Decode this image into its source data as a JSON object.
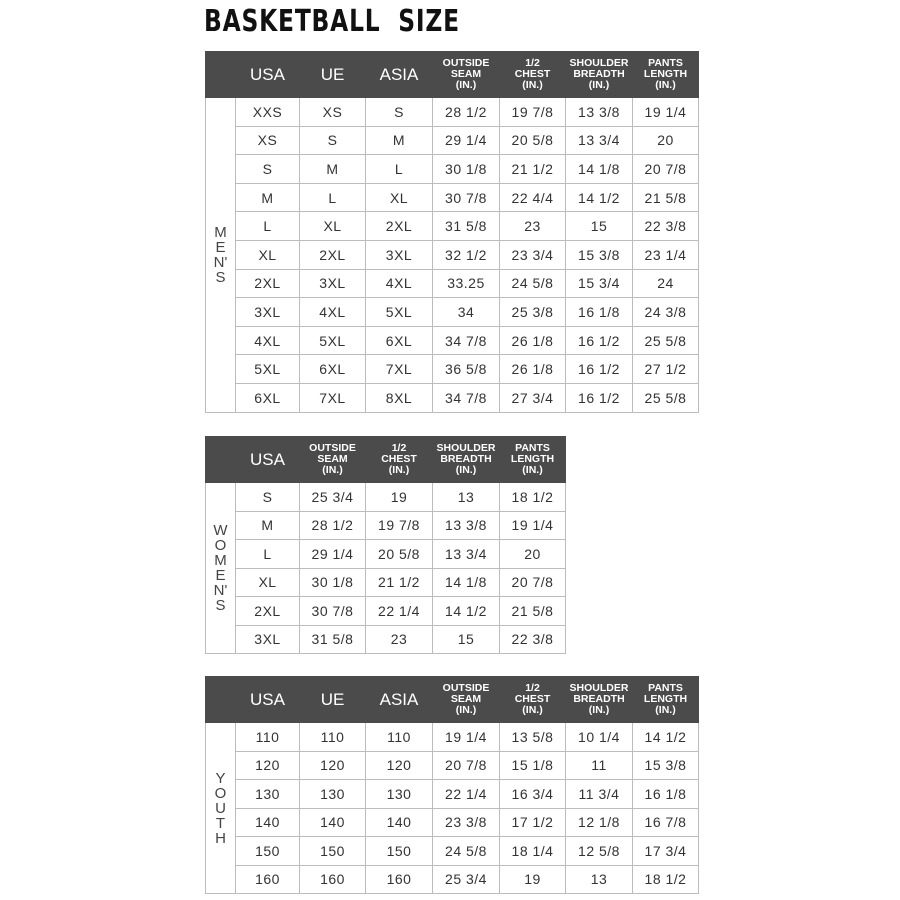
{
  "title": "BASKETBALL  SIZE",
  "colors": {
    "header_bg": "#4b4b4b",
    "header_text": "#ffffff",
    "border": "#bcbcbc"
  },
  "tables": [
    {
      "id": "mens",
      "side_label": "M\nE\nN'\nS",
      "headers": [
        "USA",
        "UE",
        "ASIA",
        "OUTSIDE\nSEAM\n(IN.)",
        "1/2\nCHEST\n(IN.)",
        "SHOULDER\nBREADTH\n(IN.)",
        "PANTS\nLENGTH\n(IN.)"
      ],
      "rows": [
        [
          "XXS",
          "XS",
          "S",
          "28 1/2",
          "19 7/8",
          "13 3/8",
          "19 1/4"
        ],
        [
          "XS",
          "S",
          "M",
          "29 1/4",
          "20 5/8",
          "13 3/4",
          "20"
        ],
        [
          "S",
          "M",
          "L",
          "30 1/8",
          "21 1/2",
          "14 1/8",
          "20 7/8"
        ],
        [
          "M",
          "L",
          "XL",
          "30 7/8",
          "22 4/4",
          "14 1/2",
          "21 5/8"
        ],
        [
          "L",
          "XL",
          "2XL",
          "31 5/8",
          "23",
          "15",
          "22 3/8"
        ],
        [
          "XL",
          "2XL",
          "3XL",
          "32 1/2",
          "23 3/4",
          "15 3/8",
          "23 1/4"
        ],
        [
          "2XL",
          "3XL",
          "4XL",
          "33.25",
          "24 5/8",
          "15 3/4",
          "24"
        ],
        [
          "3XL",
          "4XL",
          "5XL",
          "34",
          "25 3/8",
          "16 1/8",
          "24 3/8"
        ],
        [
          "4XL",
          "5XL",
          "6XL",
          "34 7/8",
          "26 1/8",
          "16 1/2",
          "25 5/8"
        ],
        [
          "5XL",
          "6XL",
          "7XL",
          "36 5/8",
          "26 1/8",
          "16 1/2",
          "27 1/2"
        ],
        [
          "6XL",
          "7XL",
          "8XL",
          "34 7/8",
          "27 3/4",
          "16 1/2",
          "25 5/8"
        ]
      ]
    },
    {
      "id": "womens",
      "side_label": "W\nO\nM\nE\nN'\nS",
      "headers": [
        "USA",
        "OUTSIDE\nSEAM\n(IN.)",
        "1/2\nCHEST\n(IN.)",
        "SHOULDER\nBREADTH\n(IN.)",
        "PANTS\nLENGTH\n(IN.)"
      ],
      "rows": [
        [
          "S",
          "25 3/4",
          "19",
          "13",
          "18 1/2"
        ],
        [
          "M",
          "28 1/2",
          "19 7/8",
          "13 3/8",
          "19 1/4"
        ],
        [
          "L",
          "29 1/4",
          "20 5/8",
          "13 3/4",
          "20"
        ],
        [
          "XL",
          "30 1/8",
          "21 1/2",
          "14 1/8",
          "20 7/8"
        ],
        [
          "2XL",
          "30 7/8",
          "22 1/4",
          "14 1/2",
          "21 5/8"
        ],
        [
          "3XL",
          "31 5/8",
          "23",
          "15",
          "22 3/8"
        ]
      ]
    },
    {
      "id": "youth",
      "side_label": "Y\nO\nU\nT\nH",
      "headers": [
        "USA",
        "UE",
        "ASIA",
        "OUTSIDE\nSEAM\n(IN.)",
        "1/2\nCHEST\n(IN.)",
        "SHOULDER\nBREADTH\n(IN.)",
        "PANTS\nLENGTH\n(IN.)"
      ],
      "rows": [
        [
          "110",
          "110",
          "110",
          "19 1/4",
          "13 5/8",
          "10 1/4",
          "14 1/2"
        ],
        [
          "120",
          "120",
          "120",
          "20 7/8",
          "15 1/8",
          "11",
          "15 3/8"
        ],
        [
          "130",
          "130",
          "130",
          "22 1/4",
          "16 3/4",
          "11 3/4",
          "16 1/8"
        ],
        [
          "140",
          "140",
          "140",
          "23 3/8",
          "17 1/2",
          "12 1/8",
          "16 7/8"
        ],
        [
          "150",
          "150",
          "150",
          "24 5/8",
          "18 1/4",
          "12 5/8",
          "17 3/4"
        ],
        [
          "160",
          "160",
          "160",
          "25 3/4",
          "19",
          "13",
          "18 1/2"
        ]
      ]
    }
  ]
}
